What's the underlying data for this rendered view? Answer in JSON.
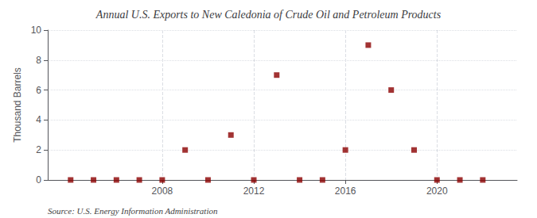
{
  "chart_data": {
    "type": "scatter",
    "title": "Annual U.S. Exports to New Caledonia of Crude Oil and Petroleum Products",
    "ylabel": "Thousand Barrels",
    "source": "Source: U.S. Energy Information Administration",
    "x": [
      2004,
      2005,
      2006,
      2007,
      2008,
      2009,
      2010,
      2011,
      2012,
      2013,
      2014,
      2015,
      2016,
      2017,
      2018,
      2019,
      2020,
      2021,
      2022
    ],
    "values": [
      0,
      0,
      0,
      0,
      0,
      2,
      0,
      3,
      0,
      7,
      0,
      0,
      2,
      9,
      6,
      2,
      0,
      0,
      0
    ],
    "color": "#8b0000",
    "marker": "square",
    "xlim": [
      2003.0,
      2023.5
    ],
    "xticks": [
      2008,
      2012,
      2016,
      2020
    ],
    "ylim": [
      0,
      10
    ],
    "yticks": [
      0,
      2,
      4,
      6,
      8,
      10
    ],
    "grid": true
  }
}
